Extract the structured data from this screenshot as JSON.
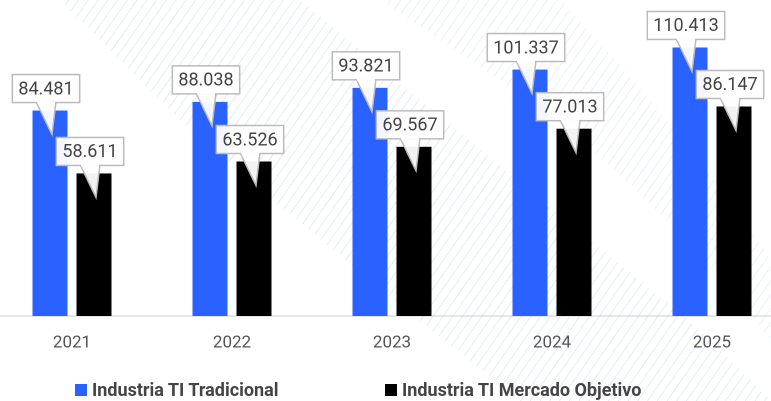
{
  "chart_data": {
    "type": "bar",
    "categories": [
      "2021",
      "2022",
      "2023",
      "2024",
      "2025"
    ],
    "series": [
      {
        "name": "Industria TI Tradicional",
        "color": "#2962ff",
        "values": [
          84.481,
          88.038,
          93.821,
          101.337,
          110.413
        ]
      },
      {
        "name": "Industria TI Mercado Objetivo",
        "color": "#000000",
        "values": [
          58.611,
          63.526,
          69.567,
          77.013,
          86.147
        ]
      }
    ],
    "ylim": [
      0,
      125
    ]
  }
}
